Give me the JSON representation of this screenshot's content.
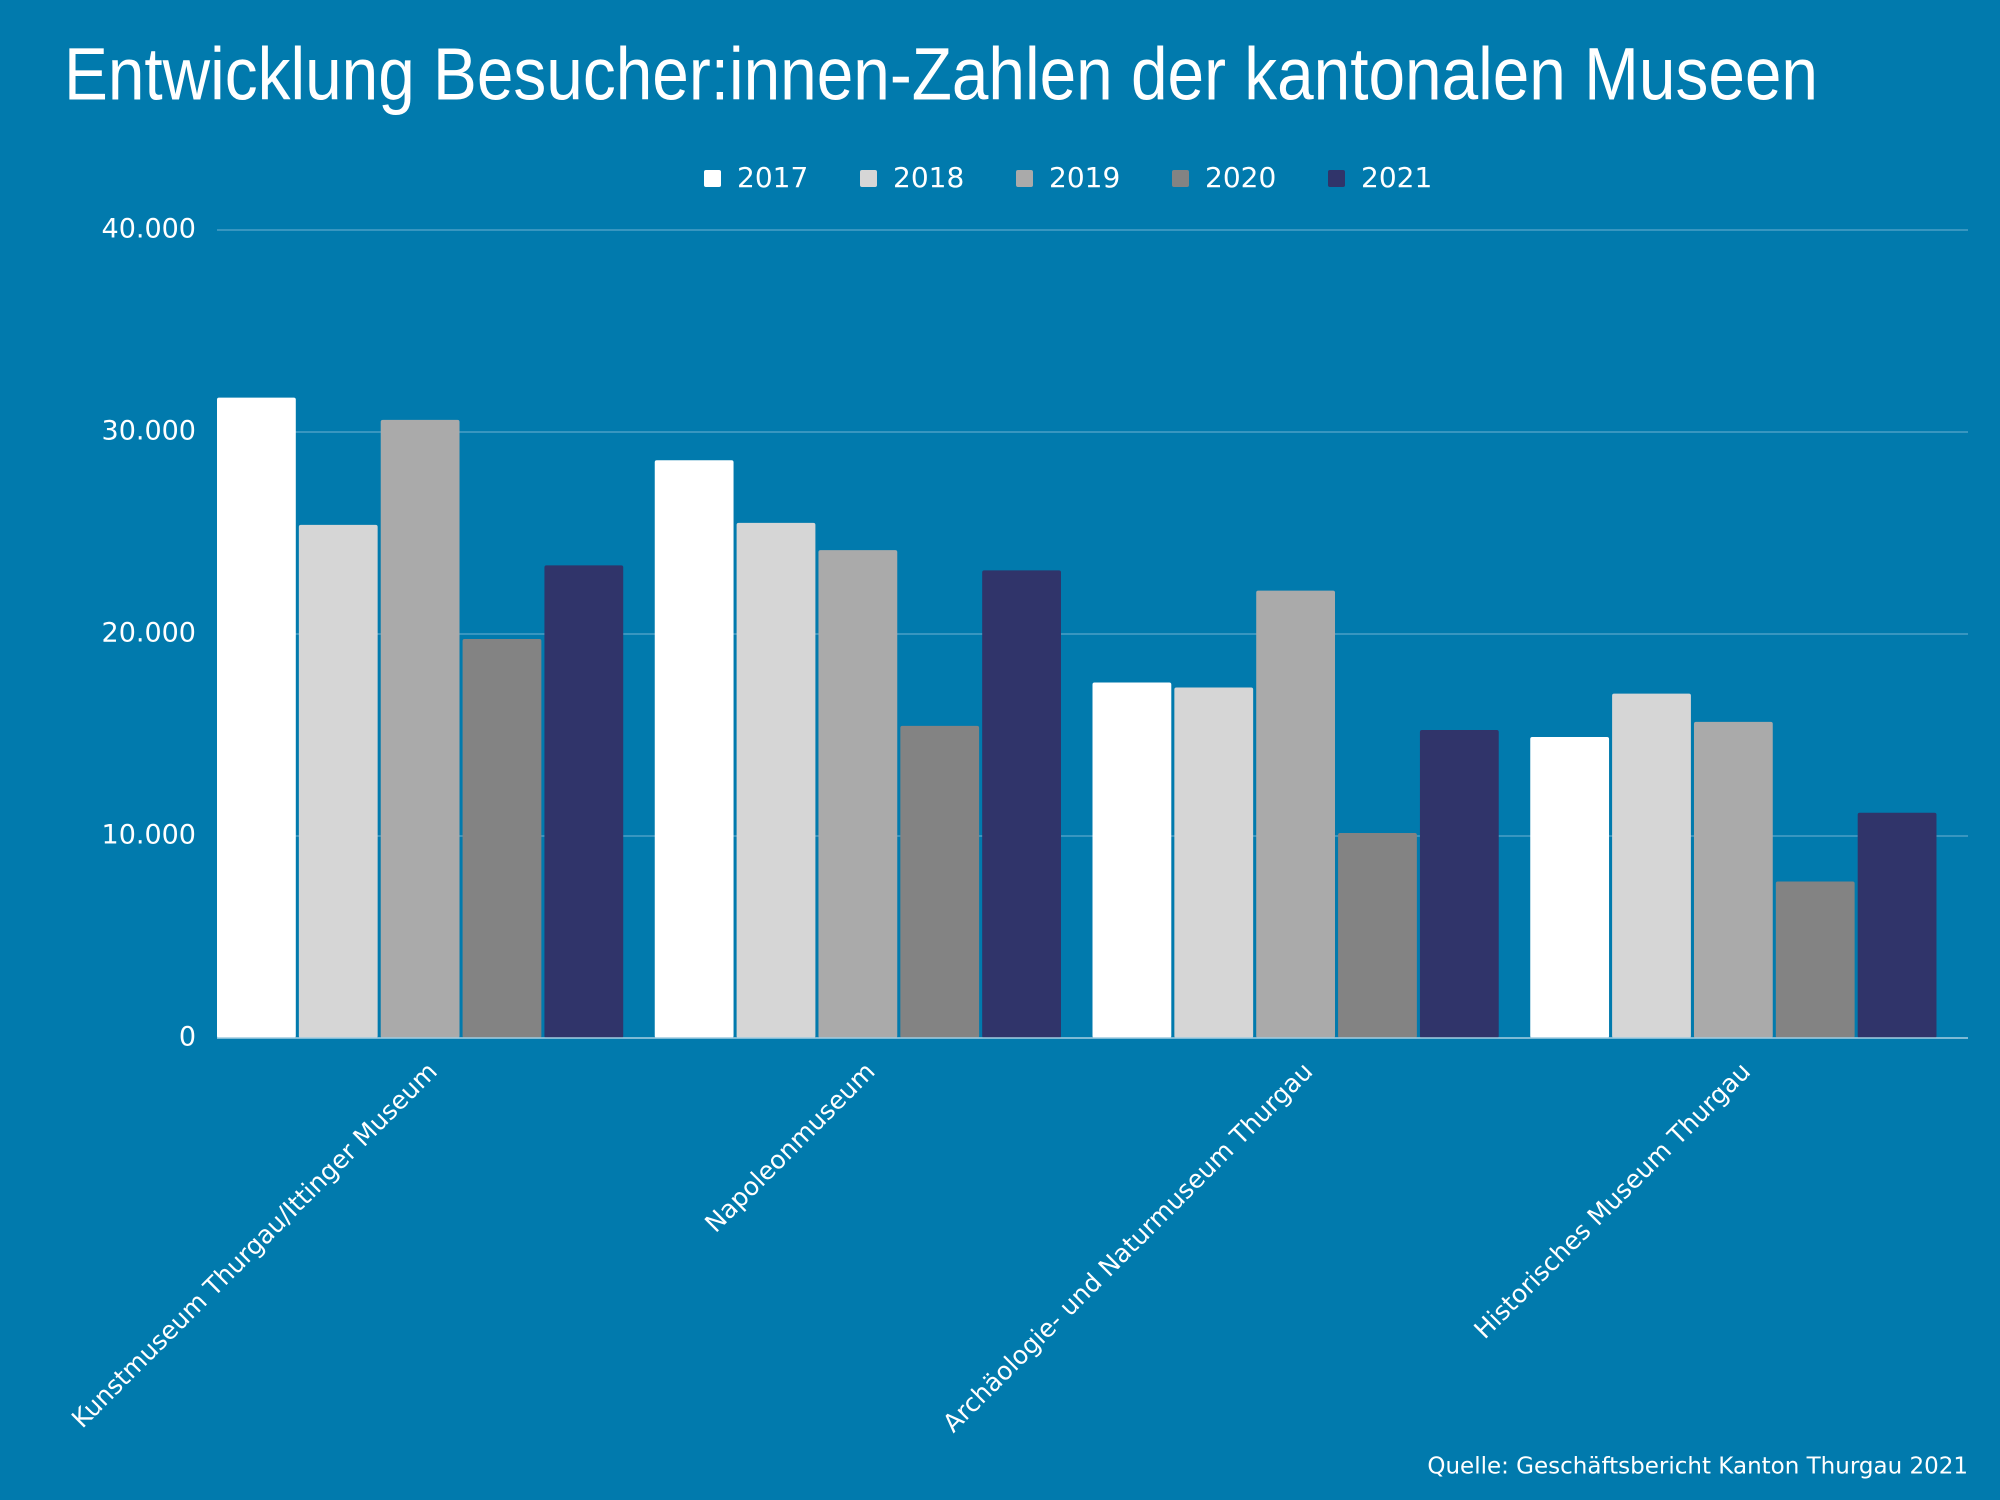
{
  "chart_data": {
    "type": "bar",
    "title": "Entwicklung Besucher:innen-Zahlen der kantonalen Museen",
    "source": "Quelle: Geschäftsbericht Kanton Thurgau 2021",
    "categories": [
      "Kunstmuseum Thurgau/Ittinger Museum",
      "Napoleonmuseum",
      "Archäologie- und Naturmuseum Thurgau",
      "Historisches Museum Thurgau"
    ],
    "series": [
      {
        "name": "2017",
        "color": "#ffffff",
        "values": [
          31700,
          28600,
          17600,
          14900
        ]
      },
      {
        "name": "2018",
        "color": "#d6d6d6",
        "values": [
          25400,
          25500,
          17350,
          17050
        ]
      },
      {
        "name": "2019",
        "color": "#aaaaaa",
        "values": [
          30600,
          24150,
          22150,
          15650
        ]
      },
      {
        "name": "2020",
        "color": "#838383",
        "values": [
          19750,
          15450,
          10150,
          7750
        ]
      },
      {
        "name": "2021",
        "color": "#30346a",
        "values": [
          23400,
          23150,
          15250,
          11150
        ]
      }
    ],
    "ylim": [
      0,
      40000
    ],
    "yticks": [
      0,
      {
        "value": 10000,
        "label": "10.000"
      },
      {
        "value": 20000,
        "label": "20.000"
      },
      {
        "value": 30000,
        "label": "30.000"
      },
      {
        "value": 40000,
        "label": "40.000"
      }
    ],
    "grid": true,
    "legend": "top"
  }
}
